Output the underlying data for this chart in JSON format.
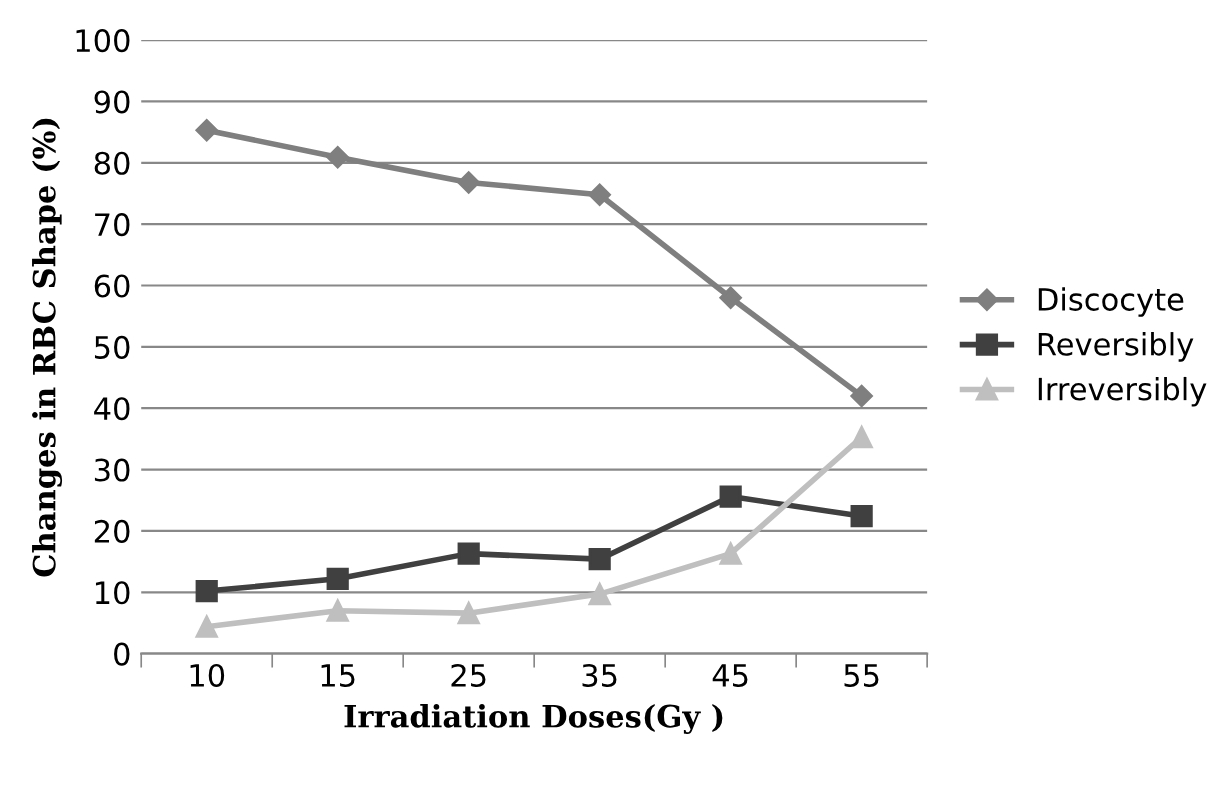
{
  "chart_data": {
    "type": "line",
    "xlabel": "Irradiation Doses(Gy )",
    "ylabel": "Changes in RBC Shape (%)",
    "categories": [
      "10",
      "15",
      "25",
      "35",
      "45",
      "55"
    ],
    "series": [
      {
        "name": "Discocyte",
        "color": "#7f7f7f",
        "marker": "diamond",
        "values": [
          85.3,
          80.9,
          76.8,
          74.8,
          58.0,
          42.0
        ]
      },
      {
        "name": "Reversibly",
        "color": "#404040",
        "marker": "square",
        "values": [
          10.2,
          12.2,
          16.3,
          15.4,
          25.6,
          22.4
        ]
      },
      {
        "name": "Irreversibly",
        "color": "#bfbfbf",
        "marker": "triangle",
        "values": [
          4.4,
          7.0,
          6.6,
          9.7,
          16.3,
          35.3
        ]
      }
    ],
    "ylim": [
      0,
      100
    ],
    "yticks": [
      0,
      10,
      20,
      30,
      40,
      50,
      60,
      70,
      80,
      90,
      100
    ],
    "grid": "y",
    "legend": "right",
    "line_style": "solid"
  }
}
